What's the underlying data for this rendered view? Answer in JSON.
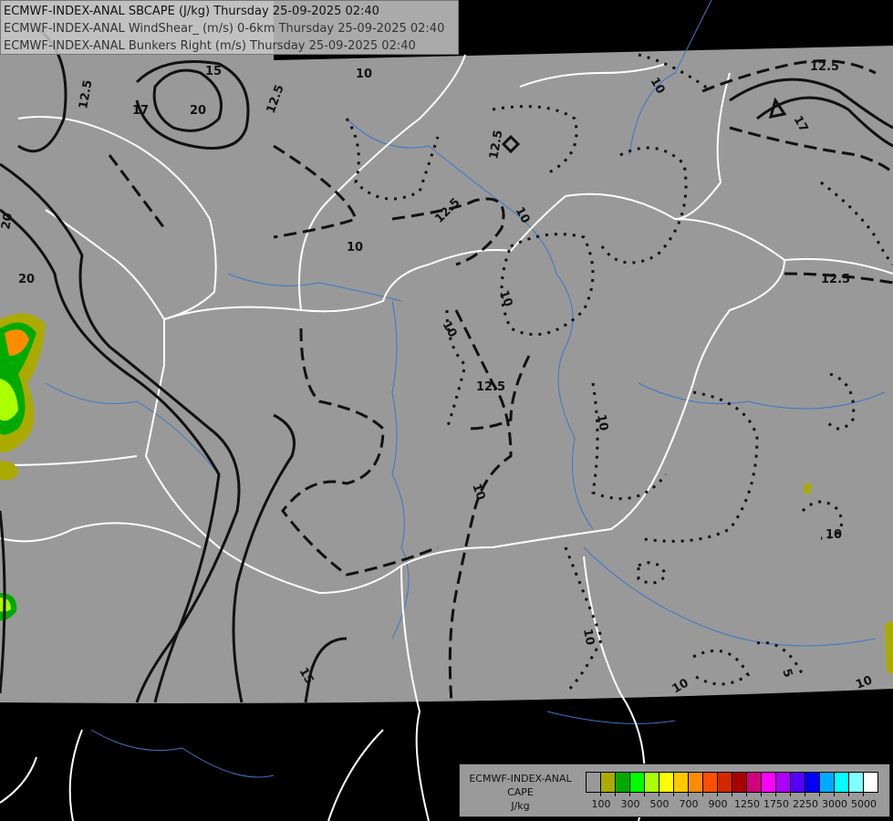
{
  "header": {
    "line1": "ECMWF-INDEX-ANAL SBCAPE (J/kg) Thursday 25-09-2025 02:40",
    "line2": "ECMWF-INDEX-ANAL WindShear_ (m/s) 0-6km Thursday 25-09-2025 02:40",
    "line3": "ECMWF-INDEX-ANAL Bunkers Right (m/s) Thursday 25-09-2025 02:40"
  },
  "legend": {
    "title1": "ECMWF-INDEX-ANAL",
    "title2": "CAPE",
    "unit": "J/kg",
    "colors": [
      "#999999",
      "#aaaa00",
      "#00aa00",
      "#00ff00",
      "#aaff00",
      "#ffff00",
      "#ffc800",
      "#ff8c00",
      "#ff5000",
      "#d22800",
      "#aa0000",
      "#d2007d",
      "#ff00ff",
      "#aa00ff",
      "#5500ff",
      "#0000ff",
      "#00aaff",
      "#00ffff",
      "#80ffff",
      "#ffffff"
    ],
    "labels": [
      "100",
      "300",
      "500",
      "700",
      "900",
      "1250",
      "1750",
      "2250",
      "3000",
      "5000"
    ]
  },
  "map": {
    "land_color": "#999999",
    "outside_color": "#000000",
    "border_color": "#ffffff",
    "river_color": "#3a78c8",
    "contour_labels": [
      "15",
      "12.5",
      "17",
      "20",
      "20",
      "20",
      "10",
      "12.5",
      "12.5",
      "10",
      "10",
      "12.5",
      "10",
      "10",
      "12.5",
      "10",
      "10",
      "10",
      "12.5",
      "17",
      "12.5",
      "10",
      "15",
      "10",
      "10",
      "5",
      "10"
    ]
  }
}
